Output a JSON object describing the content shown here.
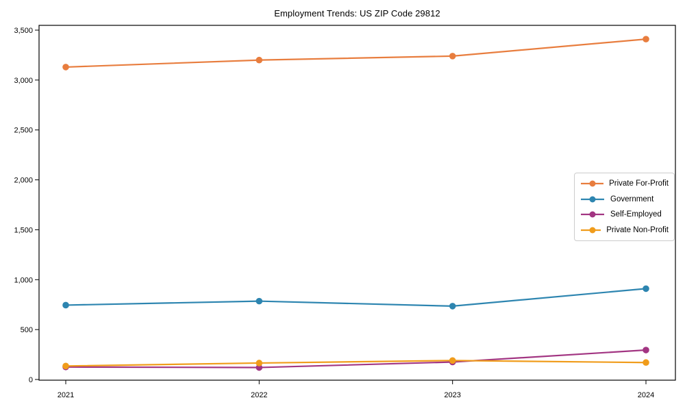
{
  "chart_data": {
    "type": "line",
    "title": "Employment Trends: US ZIP Code 29812",
    "categories": [
      "2021",
      "2022",
      "2023",
      "2024"
    ],
    "series": [
      {
        "name": "Private For-Profit",
        "color": "#e87d3e",
        "values": [
          3130,
          3200,
          3240,
          3410
        ]
      },
      {
        "name": "Government",
        "color": "#2d85b0",
        "values": [
          745,
          785,
          735,
          910
        ]
      },
      {
        "name": "Self-Employed",
        "color": "#a23582",
        "values": [
          125,
          120,
          175,
          295
        ]
      },
      {
        "name": "Private Non-Profit",
        "color": "#f09c1b",
        "values": [
          135,
          165,
          190,
          170
        ]
      }
    ],
    "xlabel": "",
    "ylabel": "",
    "ylim": [
      0,
      3500
    ],
    "yticks": [
      0,
      500,
      1000,
      1500,
      2000,
      2500,
      3000,
      3500
    ],
    "ytick_labels": [
      "0",
      "500",
      "1,000",
      "1,500",
      "2,000",
      "2,500",
      "3,000",
      "3,500"
    ],
    "grid": false,
    "legend_position": "center-right",
    "marker": "circle"
  }
}
